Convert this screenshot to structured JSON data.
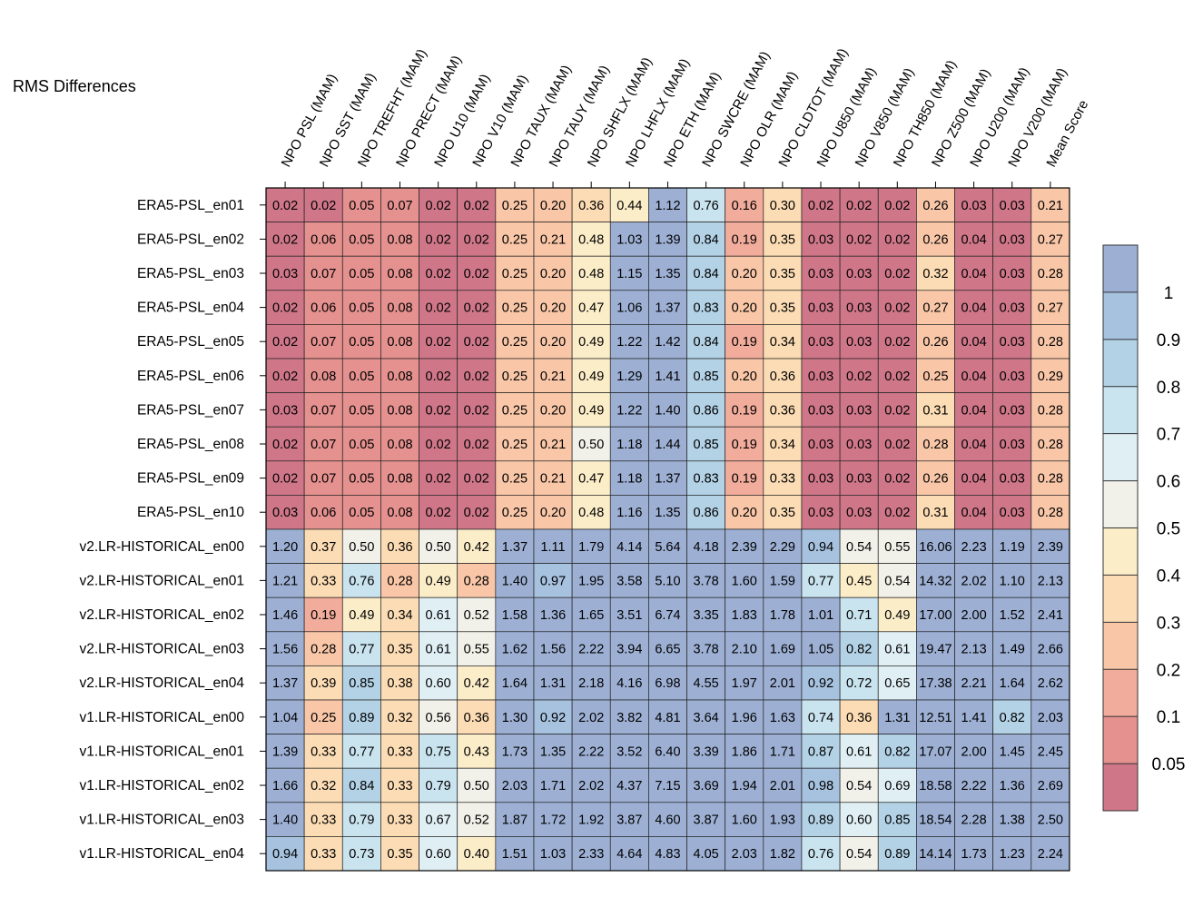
{
  "chart_data": {
    "type": "heatmap",
    "title": "RMS Differences",
    "columns": [
      "NPO PSL (MAM)",
      "NPO SST (MAM)",
      "NPO TREFHT (MAM)",
      "NPO PRECT (MAM)",
      "NPO U10 (MAM)",
      "NPO V10 (MAM)",
      "NPO TAUX (MAM)",
      "NPO TAUY (MAM)",
      "NPO SHFLX (MAM)",
      "NPO LHFLX (MAM)",
      "NPO ETH (MAM)",
      "NPO SWCRE (MAM)",
      "NPO OLR (MAM)",
      "NPO CLDTOT (MAM)",
      "NPO U850 (MAM)",
      "NPO V850 (MAM)",
      "NPO TH850 (MAM)",
      "NPO Z500 (MAM)",
      "NPO U200 (MAM)",
      "NPO V200 (MAM)",
      "Mean Score"
    ],
    "rows": [
      "ERA5-PSL_en01",
      "ERA5-PSL_en02",
      "ERA5-PSL_en03",
      "ERA5-PSL_en04",
      "ERA5-PSL_en05",
      "ERA5-PSL_en06",
      "ERA5-PSL_en07",
      "ERA5-PSL_en08",
      "ERA5-PSL_en09",
      "ERA5-PSL_en10",
      "v2.LR-HISTORICAL_en00",
      "v2.LR-HISTORICAL_en01",
      "v2.LR-HISTORICAL_en02",
      "v2.LR-HISTORICAL_en03",
      "v2.LR-HISTORICAL_en04",
      "v1.LR-HISTORICAL_en00",
      "v1.LR-HISTORICAL_en01",
      "v1.LR-HISTORICAL_en02",
      "v1.LR-HISTORICAL_en03",
      "v1.LR-HISTORICAL_en04"
    ],
    "values": [
      [
        "0.02",
        "0.02",
        "0.05",
        "0.07",
        "0.02",
        "0.02",
        "0.25",
        "0.20",
        "0.36",
        "0.44",
        "1.12",
        "0.76",
        "0.16",
        "0.30",
        "0.02",
        "0.02",
        "0.02",
        "0.26",
        "0.03",
        "0.03",
        "0.21"
      ],
      [
        "0.02",
        "0.06",
        "0.05",
        "0.08",
        "0.02",
        "0.02",
        "0.25",
        "0.21",
        "0.48",
        "1.03",
        "1.39",
        "0.84",
        "0.19",
        "0.35",
        "0.03",
        "0.02",
        "0.02",
        "0.26",
        "0.04",
        "0.03",
        "0.27"
      ],
      [
        "0.03",
        "0.07",
        "0.05",
        "0.08",
        "0.02",
        "0.02",
        "0.25",
        "0.20",
        "0.48",
        "1.15",
        "1.35",
        "0.84",
        "0.20",
        "0.35",
        "0.03",
        "0.03",
        "0.02",
        "0.32",
        "0.04",
        "0.03",
        "0.28"
      ],
      [
        "0.02",
        "0.06",
        "0.05",
        "0.08",
        "0.02",
        "0.02",
        "0.25",
        "0.20",
        "0.47",
        "1.06",
        "1.37",
        "0.83",
        "0.20",
        "0.35",
        "0.03",
        "0.03",
        "0.02",
        "0.27",
        "0.04",
        "0.03",
        "0.27"
      ],
      [
        "0.02",
        "0.07",
        "0.05",
        "0.08",
        "0.02",
        "0.02",
        "0.25",
        "0.20",
        "0.49",
        "1.22",
        "1.42",
        "0.84",
        "0.19",
        "0.34",
        "0.03",
        "0.03",
        "0.02",
        "0.26",
        "0.04",
        "0.03",
        "0.28"
      ],
      [
        "0.02",
        "0.08",
        "0.05",
        "0.08",
        "0.02",
        "0.02",
        "0.25",
        "0.21",
        "0.49",
        "1.29",
        "1.41",
        "0.85",
        "0.20",
        "0.36",
        "0.03",
        "0.02",
        "0.02",
        "0.25",
        "0.04",
        "0.03",
        "0.29"
      ],
      [
        "0.03",
        "0.07",
        "0.05",
        "0.08",
        "0.02",
        "0.02",
        "0.25",
        "0.20",
        "0.49",
        "1.22",
        "1.40",
        "0.86",
        "0.19",
        "0.36",
        "0.03",
        "0.03",
        "0.02",
        "0.31",
        "0.04",
        "0.03",
        "0.28"
      ],
      [
        "0.02",
        "0.07",
        "0.05",
        "0.08",
        "0.02",
        "0.02",
        "0.25",
        "0.21",
        "0.50",
        "1.18",
        "1.44",
        "0.85",
        "0.19",
        "0.34",
        "0.03",
        "0.03",
        "0.02",
        "0.28",
        "0.04",
        "0.03",
        "0.28"
      ],
      [
        "0.02",
        "0.07",
        "0.05",
        "0.08",
        "0.02",
        "0.02",
        "0.25",
        "0.21",
        "0.47",
        "1.18",
        "1.37",
        "0.83",
        "0.19",
        "0.33",
        "0.03",
        "0.03",
        "0.02",
        "0.26",
        "0.04",
        "0.03",
        "0.28"
      ],
      [
        "0.03",
        "0.06",
        "0.05",
        "0.08",
        "0.02",
        "0.02",
        "0.25",
        "0.20",
        "0.48",
        "1.16",
        "1.35",
        "0.86",
        "0.20",
        "0.35",
        "0.03",
        "0.03",
        "0.02",
        "0.31",
        "0.04",
        "0.03",
        "0.28"
      ],
      [
        "1.20",
        "0.37",
        "0.50",
        "0.36",
        "0.50",
        "0.42",
        "1.37",
        "1.11",
        "1.79",
        "4.14",
        "5.64",
        "4.18",
        "2.39",
        "2.29",
        "0.94",
        "0.54",
        "0.55",
        "16.06",
        "2.23",
        "1.19",
        "2.39"
      ],
      [
        "1.21",
        "0.33",
        "0.76",
        "0.28",
        "0.49",
        "0.28",
        "1.40",
        "0.97",
        "1.95",
        "3.58",
        "5.10",
        "3.78",
        "1.60",
        "1.59",
        "0.77",
        "0.45",
        "0.54",
        "14.32",
        "2.02",
        "1.10",
        "2.13"
      ],
      [
        "1.46",
        "0.19",
        "0.49",
        "0.34",
        "0.61",
        "0.52",
        "1.58",
        "1.36",
        "1.65",
        "3.51",
        "6.74",
        "3.35",
        "1.83",
        "1.78",
        "1.01",
        "0.71",
        "0.49",
        "17.00",
        "2.00",
        "1.52",
        "2.41"
      ],
      [
        "1.56",
        "0.28",
        "0.77",
        "0.35",
        "0.61",
        "0.55",
        "1.62",
        "1.56",
        "2.22",
        "3.94",
        "6.65",
        "3.78",
        "2.10",
        "1.69",
        "1.05",
        "0.82",
        "0.61",
        "19.47",
        "2.13",
        "1.49",
        "2.66"
      ],
      [
        "1.37",
        "0.39",
        "0.85",
        "0.38",
        "0.60",
        "0.42",
        "1.64",
        "1.31",
        "2.18",
        "4.16",
        "6.98",
        "4.55",
        "1.97",
        "2.01",
        "0.92",
        "0.72",
        "0.65",
        "17.38",
        "2.21",
        "1.64",
        "2.62"
      ],
      [
        "1.04",
        "0.25",
        "0.89",
        "0.32",
        "0.56",
        "0.36",
        "1.30",
        "0.92",
        "2.02",
        "3.82",
        "4.81",
        "3.64",
        "1.96",
        "1.63",
        "0.74",
        "0.36",
        "1.31",
        "12.51",
        "1.41",
        "0.82",
        "2.03"
      ],
      [
        "1.39",
        "0.33",
        "0.77",
        "0.33",
        "0.75",
        "0.43",
        "1.73",
        "1.35",
        "2.22",
        "3.52",
        "6.40",
        "3.39",
        "1.86",
        "1.71",
        "0.87",
        "0.61",
        "0.82",
        "17.07",
        "2.00",
        "1.45",
        "2.45"
      ],
      [
        "1.66",
        "0.32",
        "0.84",
        "0.33",
        "0.79",
        "0.50",
        "2.03",
        "1.71",
        "2.02",
        "4.37",
        "7.15",
        "3.69",
        "1.94",
        "2.01",
        "0.98",
        "0.54",
        "0.69",
        "18.58",
        "2.22",
        "1.36",
        "2.69"
      ],
      [
        "1.40",
        "0.33",
        "0.79",
        "0.33",
        "0.67",
        "0.52",
        "1.87",
        "1.72",
        "1.92",
        "3.87",
        "4.60",
        "3.87",
        "1.60",
        "1.93",
        "0.89",
        "0.60",
        "0.85",
        "18.54",
        "2.28",
        "1.38",
        "2.50"
      ],
      [
        "0.94",
        "0.33",
        "0.73",
        "0.35",
        "0.60",
        "0.40",
        "1.51",
        "1.03",
        "2.33",
        "4.64",
        "4.83",
        "4.05",
        "2.03",
        "1.82",
        "0.76",
        "0.54",
        "0.89",
        "14.14",
        "1.73",
        "1.23",
        "2.24"
      ]
    ],
    "colorbar": {
      "bounds": [
        0.0,
        0.05,
        0.1,
        0.2,
        0.3,
        0.4,
        0.5,
        0.6,
        0.7,
        0.8,
        0.9,
        1.0,
        99
      ],
      "colors": [
        "#cf7789",
        "#e4918f",
        "#f2ac9c",
        "#f9c7a8",
        "#fbdcb4",
        "#fcedc9",
        "#f1f1e9",
        "#e0eff4",
        "#c9e3ef",
        "#b3d2e6",
        "#a6c2df",
        "#9db0d4"
      ],
      "tick_labels": [
        "0.05",
        "0.1",
        "0.2",
        "0.3",
        "0.4",
        "0.5",
        "0.6",
        "0.7",
        "0.8",
        "0.9",
        "1"
      ]
    }
  }
}
